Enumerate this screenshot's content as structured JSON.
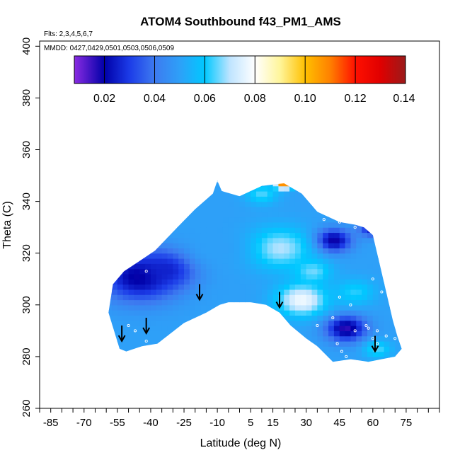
{
  "chart_data": {
    "type": "heatmap",
    "title": "ATOM4 Southbound f43_PM1_AMS",
    "flights_note": "Flts: 2,3,4,5,6,7",
    "dates_note": "MMDD: 0427,0429,0501,0503,0506,0509",
    "xlabel": "Latitude (deg N)",
    "ylabel": "Theta (C)",
    "xlim": [
      -90,
      90
    ],
    "ylim": [
      260,
      402
    ],
    "x_major_ticks": [
      -85,
      -70,
      -55,
      -40,
      -25,
      -10,
      5,
      15,
      30,
      45,
      60,
      75
    ],
    "x_minor_step": 5,
    "y_ticks": [
      260,
      280,
      300,
      320,
      340,
      360,
      380,
      400
    ],
    "colorbar": {
      "min": 0.008,
      "max": 0.14,
      "ticks": [
        "0.02",
        "0.04",
        "0.06",
        "0.08",
        "0.10",
        "0.12",
        "0.14"
      ],
      "tick_values": [
        0.02,
        0.04,
        0.06,
        0.08,
        0.1,
        0.12,
        0.14
      ],
      "stops": [
        {
          "v": 0.008,
          "color": "#8a2be2"
        },
        {
          "v": 0.02,
          "color": "#0000a8"
        },
        {
          "v": 0.03,
          "color": "#1c3ce8"
        },
        {
          "v": 0.04,
          "color": "#3d7af0"
        },
        {
          "v": 0.05,
          "color": "#2ea0f8"
        },
        {
          "v": 0.06,
          "color": "#00c8ff"
        },
        {
          "v": 0.07,
          "color": "#bfe4ff"
        },
        {
          "v": 0.08,
          "color": "#ffffff"
        },
        {
          "v": 0.09,
          "color": "#fff59a"
        },
        {
          "v": 0.1,
          "color": "#ffc000"
        },
        {
          "v": 0.11,
          "color": "#ff8000"
        },
        {
          "v": 0.12,
          "color": "#ff1000"
        },
        {
          "v": 0.13,
          "color": "#e00000"
        },
        {
          "v": 0.14,
          "color": "#9a1a1a"
        }
      ]
    },
    "boundary_top": [
      [
        -57,
        308
      ],
      [
        -52,
        313
      ],
      [
        -45,
        317
      ],
      [
        -38,
        321
      ],
      [
        -28,
        330
      ],
      [
        -20,
        337
      ],
      [
        -12,
        343
      ],
      [
        -10,
        348
      ],
      [
        -8,
        344
      ],
      [
        0,
        342
      ],
      [
        10,
        346
      ],
      [
        20,
        347
      ],
      [
        28,
        343
      ],
      [
        35,
        336
      ],
      [
        45,
        332
      ],
      [
        52,
        331
      ],
      [
        56,
        330
      ],
      [
        60,
        327
      ],
      [
        63,
        316
      ],
      [
        66,
        305
      ],
      [
        69,
        294
      ],
      [
        71,
        288
      ]
    ],
    "boundary_bottom": [
      [
        73,
        283
      ],
      [
        70,
        280
      ],
      [
        58,
        278
      ],
      [
        50,
        279
      ],
      [
        42,
        278
      ],
      [
        35,
        284
      ],
      [
        30,
        287
      ],
      [
        23,
        292
      ],
      [
        18,
        297
      ],
      [
        12,
        300
      ],
      [
        5,
        301
      ],
      [
        -5,
        301
      ],
      [
        -9,
        300
      ],
      [
        -15,
        297
      ],
      [
        -25,
        293
      ],
      [
        -37,
        285
      ],
      [
        -44,
        284
      ],
      [
        -51,
        282
      ],
      [
        -54,
        283
      ],
      [
        -59,
        297
      ]
    ],
    "field_base": 0.05,
    "field_features": [
      {
        "lat": -45,
        "theta": 311,
        "value": 0.018,
        "radius": 17
      },
      {
        "lat": -32,
        "theta": 314,
        "value": 0.025,
        "radius": 12
      },
      {
        "lat": 42,
        "theta": 325,
        "value": 0.016,
        "radius": 8
      },
      {
        "lat": 48,
        "theta": 291,
        "value": 0.016,
        "radius": 9
      },
      {
        "lat": 60,
        "theta": 330,
        "value": 0.022,
        "radius": 6
      },
      {
        "lat": 28,
        "theta": 302,
        "value": 0.078,
        "radius": 11
      },
      {
        "lat": 18,
        "theta": 322,
        "value": 0.07,
        "radius": 14
      },
      {
        "lat": 33,
        "theta": 313,
        "value": 0.066,
        "radius": 8
      },
      {
        "lat": 52,
        "theta": 305,
        "value": 0.062,
        "radius": 9
      },
      {
        "lat": 10,
        "theta": 343,
        "value": 0.064,
        "radius": 7
      },
      {
        "lat": 20,
        "theta": 347,
        "value": 0.115,
        "radius": 3.5
      },
      {
        "lat": -10,
        "theta": 322,
        "value": 0.05,
        "radius": 14
      },
      {
        "lat": 62,
        "theta": 283,
        "value": 0.064,
        "radius": 6
      }
    ],
    "sample_points": [
      [
        -42,
        313
      ],
      [
        -50,
        292
      ],
      [
        -47,
        290
      ],
      [
        -42,
        286
      ],
      [
        -41,
        283
      ],
      [
        -10,
        348
      ],
      [
        38,
        333
      ],
      [
        45,
        332
      ],
      [
        52,
        330
      ],
      [
        60,
        328
      ],
      [
        45,
        303
      ],
      [
        50,
        300
      ],
      [
        42,
        295
      ],
      [
        52,
        290
      ],
      [
        58,
        291
      ],
      [
        62,
        290
      ],
      [
        60,
        287
      ],
      [
        66,
        288
      ],
      [
        70,
        287
      ],
      [
        64,
        305
      ],
      [
        60,
        310
      ],
      [
        44,
        285
      ],
      [
        46,
        282
      ],
      [
        48,
        280
      ],
      [
        62,
        285
      ],
      [
        57,
        292
      ],
      [
        35,
        292
      ]
    ],
    "arrows": [
      [
        -53,
        286
      ],
      [
        -42,
        289
      ],
      [
        -18,
        302
      ],
      [
        18,
        299
      ],
      [
        61,
        282
      ]
    ]
  }
}
